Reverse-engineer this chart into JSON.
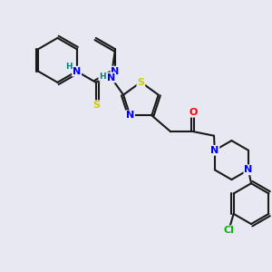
{
  "bg_color": "#e8e8f2",
  "bond_color": "#1a1a1a",
  "bond_width": 1.5,
  "atom_colors": {
    "N": "#0000ff",
    "S": "#cccc00",
    "O": "#ff0000",
    "Cl": "#00bb00",
    "H_label": "#008080",
    "C": "#1a1a1a"
  },
  "font_size_atom": 8,
  "font_size_small": 6.5
}
